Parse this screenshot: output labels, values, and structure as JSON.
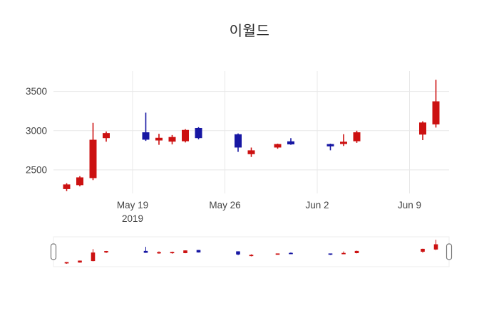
{
  "chart_data": {
    "type": "candlestick",
    "title": "이월드",
    "xlabel": "",
    "ylabel": "",
    "x_domain": [
      0,
      30
    ],
    "ylim": [
      2200,
      3760
    ],
    "slider_ylim": [
      2180,
      3700
    ],
    "grid": true,
    "increasing_color": "#cc1111",
    "decreasing_color": "#1717a3",
    "gridline_color": "#e8e8e8",
    "axis_text_color": "#444444",
    "yticks": [
      {
        "value": 2500,
        "label": "2500"
      },
      {
        "value": 3000,
        "label": "3000"
      },
      {
        "value": 3500,
        "label": "3500"
      }
    ],
    "xticks": [
      {
        "x": 6,
        "label": "May 19",
        "sub": "2019"
      },
      {
        "x": 13,
        "label": "May 26",
        "sub": ""
      },
      {
        "x": 20,
        "label": "Jun 2",
        "sub": ""
      },
      {
        "x": 27,
        "label": "Jun 9",
        "sub": ""
      }
    ],
    "candles": [
      {
        "x": 1,
        "open": 2260,
        "high": 2330,
        "low": 2230,
        "close": 2310
      },
      {
        "x": 2,
        "open": 2310,
        "high": 2420,
        "low": 2290,
        "close": 2400
      },
      {
        "x": 3,
        "open": 2400,
        "high": 3100,
        "low": 2370,
        "close": 2880
      },
      {
        "x": 4,
        "open": 2910,
        "high": 2990,
        "low": 2860,
        "close": 2965
      },
      {
        "x": 7,
        "open": 2975,
        "high": 3230,
        "low": 2870,
        "close": 2890
      },
      {
        "x": 8,
        "open": 2880,
        "high": 2960,
        "low": 2820,
        "close": 2905
      },
      {
        "x": 9,
        "open": 2865,
        "high": 2945,
        "low": 2825,
        "close": 2915
      },
      {
        "x": 10,
        "open": 2870,
        "high": 3020,
        "low": 2850,
        "close": 3005
      },
      {
        "x": 11,
        "open": 3030,
        "high": 3045,
        "low": 2890,
        "close": 2910
      },
      {
        "x": 14,
        "open": 2950,
        "high": 2965,
        "low": 2730,
        "close": 2790
      },
      {
        "x": 15,
        "open": 2705,
        "high": 2785,
        "low": 2665,
        "close": 2745
      },
      {
        "x": 17,
        "open": 2790,
        "high": 2835,
        "low": 2770,
        "close": 2825
      },
      {
        "x": 18,
        "open": 2860,
        "high": 2905,
        "low": 2820,
        "close": 2830
      },
      {
        "x": 21,
        "open": 2825,
        "high": 2835,
        "low": 2750,
        "close": 2805
      },
      {
        "x": 22,
        "open": 2835,
        "high": 2955,
        "low": 2805,
        "close": 2855
      },
      {
        "x": 23,
        "open": 2870,
        "high": 3000,
        "low": 2845,
        "close": 2975
      },
      {
        "x": 28,
        "open": 2955,
        "high": 3120,
        "low": 2880,
        "close": 3100
      },
      {
        "x": 29,
        "open": 3085,
        "high": 3650,
        "low": 3040,
        "close": 3370
      }
    ],
    "legend": "none",
    "rangeslider": true
  }
}
